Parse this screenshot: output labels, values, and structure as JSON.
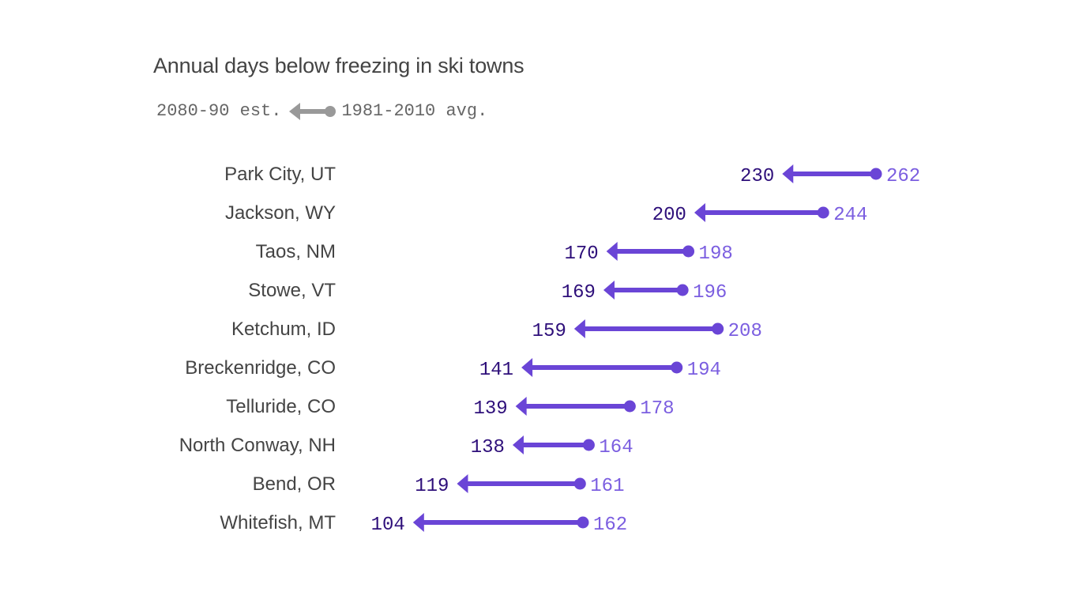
{
  "chart_data": {
    "type": "arrow-dot",
    "title": "Annual days below freezing in ski towns",
    "legend": {
      "end_label": "2080-90 est.",
      "start_label": "1981-2010 avg."
    },
    "colors": {
      "arrow": "#6a45d6",
      "end_value": "#2e0f7a",
      "start_value": "#7b5ee0",
      "legend": "#999999"
    },
    "categories": [
      "Park City, UT",
      "Jackson, WY",
      "Taos, NM",
      "Stowe, VT",
      "Ketchum, ID",
      "Breckenridge, CO",
      "Telluride, CO",
      "North Conway, NH",
      "Bend, OR",
      "Whitefish, MT"
    ],
    "series": [
      {
        "name": "1981-2010 avg.",
        "values": [
          262,
          244,
          198,
          196,
          208,
          194,
          178,
          164,
          161,
          162
        ]
      },
      {
        "name": "2080-90 est.",
        "values": [
          230,
          200,
          170,
          169,
          159,
          141,
          139,
          138,
          119,
          104
        ]
      }
    ]
  }
}
